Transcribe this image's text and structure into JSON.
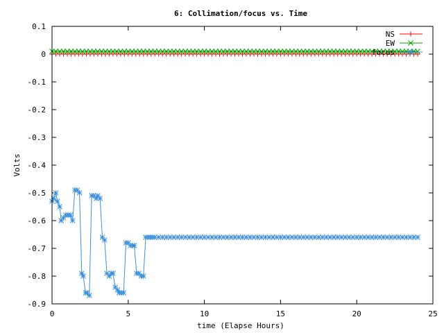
{
  "chart_data": {
    "type": "line",
    "title": "6: Collimation/focus vs. Time",
    "xlabel": "time (Elapse Hours)",
    "ylabel": "Volts",
    "xlim": [
      0,
      25
    ],
    "ylim": [
      -0.9,
      0.1
    ],
    "xticks": [
      0,
      5,
      10,
      15,
      20,
      25
    ],
    "xtick_labels": [
      "0",
      "5",
      "10",
      "15",
      "20",
      "25"
    ],
    "yticks": [
      0.1,
      0,
      -0.1,
      -0.2,
      -0.3,
      -0.4,
      -0.5,
      -0.6,
      -0.7,
      -0.8,
      -0.9
    ],
    "ytick_labels": [
      "0.1",
      "0",
      "-0.1",
      "-0.2",
      "-0.3",
      "-0.4",
      "-0.5",
      "-0.6",
      "-0.7",
      "-0.8",
      "-0.9"
    ],
    "grid": false,
    "legend_position": "top-right",
    "series": [
      {
        "name": "NS",
        "color": "#ff0000",
        "marker": "plus",
        "x": [
          0,
          0.25,
          0.5,
          0.75,
          1,
          1.25,
          1.5,
          1.75,
          2,
          2.25,
          2.5,
          2.75,
          3,
          3.25,
          3.5,
          3.75,
          4,
          4.25,
          4.5,
          4.75,
          5,
          5.25,
          5.5,
          5.75,
          6,
          6.25,
          6.5,
          6.75,
          7,
          7.25,
          7.5,
          7.75,
          8,
          8.25,
          8.5,
          8.75,
          9,
          9.25,
          9.5,
          9.75,
          10,
          10.25,
          10.5,
          10.75,
          11,
          11.25,
          11.5,
          11.75,
          12,
          12.25,
          12.5,
          12.75,
          13,
          13.25,
          13.5,
          13.75,
          14,
          14.25,
          14.5,
          14.75,
          15,
          15.25,
          15.5,
          15.75,
          16,
          16.25,
          16.5,
          16.75,
          17,
          17.25,
          17.5,
          17.75,
          18,
          18.25,
          18.5,
          18.75,
          19,
          19.25,
          19.5,
          19.75,
          20,
          20.25,
          20.5,
          20.75,
          21,
          21.25,
          21.5,
          21.75,
          22,
          22.25,
          22.5,
          22.75,
          23,
          23.25,
          23.5,
          23.75,
          24
        ],
        "y": [
          0,
          0,
          0,
          0,
          0,
          0,
          0,
          0,
          0,
          0,
          0,
          0,
          0,
          0,
          0,
          0,
          0,
          0,
          0,
          0,
          0,
          0,
          0,
          0,
          0,
          0,
          0,
          0,
          0,
          0,
          0,
          0,
          0,
          0,
          0,
          0,
          0,
          0,
          0,
          0,
          0,
          0,
          0,
          0,
          0,
          0,
          0,
          0,
          0,
          0,
          0,
          0,
          0,
          0,
          0,
          0,
          0,
          0,
          0,
          0,
          0,
          0,
          0,
          0,
          0,
          0,
          0,
          0,
          0,
          0,
          0,
          0,
          0,
          0,
          0,
          0,
          0,
          0,
          0,
          0,
          0,
          0,
          0,
          0,
          0,
          0,
          0,
          0,
          0,
          0,
          0,
          0,
          0,
          0,
          0,
          0,
          0
        ]
      },
      {
        "name": "EW",
        "color": "#00a000",
        "marker": "cross",
        "x": [
          0,
          0.25,
          0.5,
          0.75,
          1,
          1.25,
          1.5,
          1.75,
          2,
          2.25,
          2.5,
          2.75,
          3,
          3.25,
          3.5,
          3.75,
          4,
          4.25,
          4.5,
          4.75,
          5,
          5.25,
          5.5,
          5.75,
          6,
          6.25,
          6.5,
          6.75,
          7,
          7.25,
          7.5,
          7.75,
          8,
          8.25,
          8.5,
          8.75,
          9,
          9.25,
          9.5,
          9.75,
          10,
          10.25,
          10.5,
          10.75,
          11,
          11.25,
          11.5,
          11.75,
          12,
          12.25,
          12.5,
          12.75,
          13,
          13.25,
          13.5,
          13.75,
          14,
          14.25,
          14.5,
          14.75,
          15,
          15.25,
          15.5,
          15.75,
          16,
          16.25,
          16.5,
          16.75,
          17,
          17.25,
          17.5,
          17.75,
          18,
          18.25,
          18.5,
          18.75,
          19,
          19.25,
          19.5,
          19.75,
          20,
          20.25,
          20.5,
          20.75,
          21,
          21.25,
          21.5,
          21.75,
          22,
          22.25,
          22.5,
          22.75,
          23,
          23.25,
          23.5,
          23.75,
          24
        ],
        "y": [
          0.01,
          0.01,
          0.01,
          0.01,
          0.01,
          0.01,
          0.01,
          0.01,
          0.01,
          0.01,
          0.01,
          0.01,
          0.01,
          0.01,
          0.01,
          0.01,
          0.01,
          0.01,
          0.01,
          0.01,
          0.01,
          0.01,
          0.01,
          0.01,
          0.01,
          0.01,
          0.01,
          0.01,
          0.01,
          0.01,
          0.01,
          0.01,
          0.01,
          0.01,
          0.01,
          0.01,
          0.01,
          0.01,
          0.01,
          0.01,
          0.01,
          0.01,
          0.01,
          0.01,
          0.01,
          0.01,
          0.01,
          0.01,
          0.01,
          0.01,
          0.01,
          0.01,
          0.01,
          0.01,
          0.01,
          0.01,
          0.01,
          0.01,
          0.01,
          0.01,
          0.01,
          0.01,
          0.01,
          0.01,
          0.01,
          0.01,
          0.01,
          0.01,
          0.01,
          0.01,
          0.01,
          0.01,
          0.01,
          0.01,
          0.01,
          0.01,
          0.01,
          0.01,
          0.01,
          0.01,
          0.01,
          0.01,
          0.01,
          0.01,
          0.01,
          0.01,
          0.01,
          0.01,
          0.01,
          0.01,
          0.01,
          0.01,
          0.01,
          0.01,
          0.01,
          0.01,
          0.01
        ]
      },
      {
        "name": "focus",
        "color": "#3a8fd9",
        "marker": "star",
        "x": [
          0,
          0.1,
          0.25,
          0.35,
          0.5,
          0.6,
          0.75,
          0.9,
          1.05,
          1.2,
          1.35,
          1.5,
          1.65,
          1.8,
          1.95,
          2.05,
          2.2,
          2.3,
          2.45,
          2.6,
          2.75,
          2.9,
          3.0,
          3.15,
          3.3,
          3.45,
          3.6,
          3.75,
          3.9,
          4.0,
          4.15,
          4.3,
          4.4,
          4.55,
          4.7,
          4.85,
          5.0,
          5.15,
          5.3,
          5.4,
          5.55,
          5.7,
          5.85,
          6.0,
          6.15,
          6.3,
          6.45,
          6.6,
          6.75,
          7,
          7.25,
          7.5,
          7.75,
          8,
          8.25,
          8.5,
          8.75,
          9,
          9.25,
          9.5,
          9.75,
          10,
          10.25,
          10.5,
          10.75,
          11,
          11.25,
          11.5,
          11.75,
          12,
          12.25,
          12.5,
          12.75,
          13,
          13.25,
          13.5,
          13.75,
          14,
          14.25,
          14.5,
          14.75,
          15,
          15.25,
          15.5,
          15.75,
          16,
          16.25,
          16.5,
          16.75,
          17,
          17.25,
          17.5,
          17.75,
          18,
          18.25,
          18.5,
          18.75,
          19,
          19.25,
          19.5,
          19.75,
          20,
          20.25,
          20.5,
          20.75,
          21,
          21.25,
          21.5,
          21.75,
          22,
          22.25,
          22.5,
          22.75,
          23,
          23.25,
          23.5,
          23.75,
          24
        ],
        "y": [
          -0.53,
          -0.52,
          -0.5,
          -0.53,
          -0.55,
          -0.6,
          -0.59,
          -0.58,
          -0.58,
          -0.58,
          -0.6,
          -0.49,
          -0.49,
          -0.5,
          -0.79,
          -0.8,
          -0.86,
          -0.86,
          -0.87,
          -0.51,
          -0.51,
          -0.52,
          -0.51,
          -0.52,
          -0.66,
          -0.67,
          -0.79,
          -0.8,
          -0.79,
          -0.79,
          -0.84,
          -0.85,
          -0.86,
          -0.86,
          -0.86,
          -0.68,
          -0.68,
          -0.69,
          -0.69,
          -0.69,
          -0.79,
          -0.79,
          -0.8,
          -0.8,
          -0.66,
          -0.66,
          -0.66,
          -0.66,
          -0.66,
          -0.66,
          -0.66,
          -0.66,
          -0.66,
          -0.66,
          -0.66,
          -0.66,
          -0.66,
          -0.66,
          -0.66,
          -0.66,
          -0.66,
          -0.66,
          -0.66,
          -0.66,
          -0.66,
          -0.66,
          -0.66,
          -0.66,
          -0.66,
          -0.66,
          -0.66,
          -0.66,
          -0.66,
          -0.66,
          -0.66,
          -0.66,
          -0.66,
          -0.66,
          -0.66,
          -0.66,
          -0.66,
          -0.66,
          -0.66,
          -0.66,
          -0.66,
          -0.66,
          -0.66,
          -0.66,
          -0.66,
          -0.66,
          -0.66,
          -0.66,
          -0.66,
          -0.66,
          -0.66,
          -0.66,
          -0.66,
          -0.66,
          -0.66,
          -0.66,
          -0.66,
          -0.66,
          -0.66,
          -0.66,
          -0.66,
          -0.66,
          -0.66,
          -0.66,
          -0.66,
          -0.66,
          -0.66,
          -0.66,
          -0.66,
          -0.66,
          -0.66,
          -0.66,
          -0.66,
          -0.66
        ]
      }
    ]
  }
}
